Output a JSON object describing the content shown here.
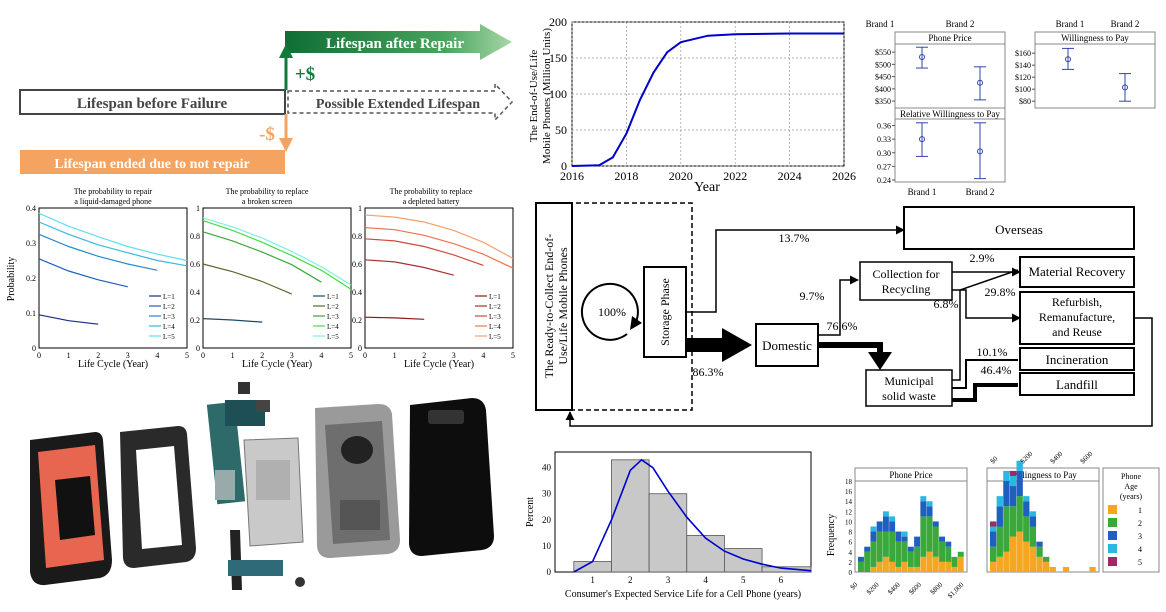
{
  "lifespan": {
    "before_failure": "Lifespan before Failure",
    "after_repair": "Lifespan after Repair",
    "extended": "Possible Extended Lifespan",
    "ended": "Lifespan ended due to not repair",
    "plus": "+$",
    "minus": "-$",
    "colors": {
      "green": "#0f7a3a",
      "orange": "#f4a460",
      "gray": "#555555"
    }
  },
  "eol_chart": {
    "ylabel_line1": "The End-of-Use/Life",
    "ylabel_line2": "Mobile Phones (Million Units)",
    "xlabel": "Year",
    "xticks": [
      "2016",
      "2018",
      "2020",
      "2022",
      "2024",
      "2026"
    ],
    "yticks": [
      "0",
      "50",
      "100",
      "150",
      "200"
    ]
  },
  "price_panels": {
    "brand1_label": "Brand 1",
    "brand2_label": "Brand 2",
    "phone_price_title": "Phone Price",
    "phone_price_ticks": [
      "$550",
      "$500",
      "$450",
      "$400",
      "$350"
    ],
    "rel_wtp_title": "Relative Willingness to Pay",
    "rel_wtp_ticks": [
      "0.36",
      "0.33",
      "0.30",
      "0.27",
      "0.24"
    ],
    "wtp_title": "Willingness to Pay",
    "wtp_ticks": [
      "$160",
      "$140",
      "$120",
      "$100",
      "$80"
    ]
  },
  "prob_charts": {
    "ylabel": "Probability",
    "xlabel": "Life Cycle (Year)",
    "xticks": [
      "0",
      "1",
      "2",
      "3",
      "4",
      "5"
    ],
    "legend": [
      "L=1",
      "L=2",
      "L=3",
      "L=4",
      "L=5"
    ],
    "c1": {
      "title1": "The probability to repair",
      "title2": "a liquid-damaged phone",
      "yticks": [
        "0.4",
        "0.3",
        "0.2",
        "0.1",
        "0"
      ]
    },
    "c2": {
      "title1": "The probability to replace",
      "title2": "a broken screen",
      "yticks": [
        "1",
        "0.8",
        "0.6",
        "0.4",
        "0.2",
        "0"
      ]
    },
    "c3": {
      "title1": "The probability to replace",
      "title2": "a depleted battery",
      "yticks": [
        "1",
        "0.8",
        "0.6",
        "0.4",
        "0.2",
        "0"
      ]
    }
  },
  "flow": {
    "ready_line1": "The Ready-to-Collect End-of-",
    "ready_line2": "Use/Life Mobile Phones",
    "storage": "Storage Phase",
    "pct_100": "100%",
    "domestic": "Domestic",
    "overseas": "Overseas",
    "collection_line1": "Collection for",
    "collection_line2": "Recycling",
    "msw_line1": "Municipal",
    "msw_line2": "solid waste",
    "material_recovery": "Material Recovery",
    "refurb_line1": "Refurbish,",
    "refurb_line2": "Remanufacture,",
    "refurb_line3": "and Reuse",
    "incineration": "Incineration",
    "landfill": "Landfill",
    "p_overseas": "13.7%",
    "p_domestic": "86.3%",
    "p_collection": "9.7%",
    "p_msw": "76.6%",
    "p_mat": "2.9%",
    "p_refurb_small": "6.8%",
    "p_refurb": "29.8%",
    "p_incin": "10.1%",
    "p_landfill": "46.4%"
  },
  "hist": {
    "ylabel": "Percent",
    "xlabel": "Consumer's Expected Service Life for a Cell Phone (years)",
    "yticks": [
      "40",
      "30",
      "20",
      "10",
      "0"
    ],
    "xticks": [
      "1",
      "2",
      "3",
      "4",
      "5",
      "6"
    ]
  },
  "freq": {
    "ylabel": "Frequency",
    "phone_price_title": "Phone Price",
    "wtp_title": "Willingness to Pay",
    "yticks": [
      "18",
      "16",
      "14",
      "12",
      "10",
      "8",
      "6",
      "4",
      "2",
      "0"
    ],
    "price_xticks": [
      "$0",
      "$200",
      "$400",
      "$600",
      "$800",
      "$1,000"
    ],
    "wtp_xticks": [
      "$0",
      "$200",
      "$400",
      "$600"
    ],
    "legend_title1": "Phone",
    "legend_title2": "Age",
    "legend_title3": "(years)",
    "legend_items": [
      "1",
      "2",
      "3",
      "4",
      "5"
    ],
    "colors": [
      "#f5a623",
      "#3aa83a",
      "#1f5fbf",
      "#2ab7e0",
      "#9c2a64"
    ]
  },
  "chart_data": [
    {
      "type": "line",
      "x": [
        2016,
        2017,
        2017.5,
        2018,
        2018.5,
        2019,
        2019.5,
        2020,
        2021,
        2022,
        2024,
        2026
      ],
      "y": [
        0,
        1,
        12,
        45,
        92,
        130,
        158,
        172,
        181,
        183,
        184,
        184
      ],
      "xlabel": "Year",
      "ylabel": "The End-of-Use/Life Mobile Phones (Million Units)",
      "xlim": [
        2016,
        2026
      ],
      "ylim": [
        0,
        200
      ]
    },
    {
      "type": "scatter",
      "title": "Phone Price",
      "categories": [
        "Brand 1",
        "Brand 2"
      ],
      "values": [
        530,
        425
      ],
      "error_low": [
        485,
        355
      ],
      "error_high": [
        570,
        490
      ],
      "ylim": [
        330,
        575
      ]
    },
    {
      "type": "scatter",
      "title": "Relative Willingness to Pay",
      "categories": [
        "Brand 1",
        "Brand 2"
      ],
      "values": [
        0.33,
        0.303
      ],
      "error_low": [
        0.292,
        0.243
      ],
      "error_high": [
        0.366,
        0.366
      ],
      "ylim": [
        0.24,
        0.37
      ]
    },
    {
      "type": "scatter",
      "title": "Willingness to Pay",
      "categories": [
        "Brand 1",
        "Brand 2"
      ],
      "values": [
        150,
        103
      ],
      "error_low": [
        133,
        80
      ],
      "error_high": [
        168,
        126
      ],
      "ylim": [
        72,
        172
      ]
    },
    {
      "type": "line",
      "title": "The probability to repair a liquid-damaged phone",
      "xlabel": "Life Cycle (Year)",
      "ylabel": "Probability",
      "xlim": [
        0,
        5
      ],
      "ylim": [
        0,
        0.4
      ],
      "series": [
        {
          "name": "L=1",
          "x": [
            0,
            1,
            2
          ],
          "y": [
            0.095,
            0.078,
            0.068
          ]
        },
        {
          "name": "L=2",
          "x": [
            0,
            1,
            2,
            3
          ],
          "y": [
            0.255,
            0.22,
            0.195,
            0.175
          ]
        },
        {
          "name": "L=3",
          "x": [
            0,
            1,
            2,
            3,
            4
          ],
          "y": [
            0.325,
            0.29,
            0.262,
            0.24,
            0.222
          ]
        },
        {
          "name": "L=4",
          "x": [
            0,
            1,
            2,
            3,
            4,
            5
          ],
          "y": [
            0.36,
            0.325,
            0.295,
            0.272,
            0.25,
            0.235
          ]
        },
        {
          "name": "L=5",
          "x": [
            0,
            1,
            2,
            3,
            4,
            5
          ],
          "y": [
            0.385,
            0.348,
            0.318,
            0.29,
            0.268,
            0.25
          ]
        }
      ]
    },
    {
      "type": "line",
      "title": "The probability to replace a broken screen",
      "xlabel": "Life Cycle (Year)",
      "ylabel": "Probability",
      "xlim": [
        0,
        5
      ],
      "ylim": [
        0,
        1
      ],
      "series": [
        {
          "name": "L=1",
          "x": [
            0,
            1,
            2
          ],
          "y": [
            0.21,
            0.2,
            0.185
          ]
        },
        {
          "name": "L=2",
          "x": [
            0,
            1,
            2,
            3
          ],
          "y": [
            0.6,
            0.545,
            0.475,
            0.385
          ]
        },
        {
          "name": "L=3",
          "x": [
            0,
            1,
            2,
            3,
            4
          ],
          "y": [
            0.83,
            0.765,
            0.685,
            0.595,
            0.47
          ]
        },
        {
          "name": "L=4",
          "x": [
            0,
            1,
            2,
            3,
            4,
            5
          ],
          "y": [
            0.91,
            0.84,
            0.755,
            0.66,
            0.555,
            0.42
          ]
        },
        {
          "name": "L=5",
          "x": [
            0,
            1,
            2,
            3,
            4,
            5
          ],
          "y": [
            0.93,
            0.865,
            0.785,
            0.69,
            0.58,
            0.45
          ]
        }
      ]
    },
    {
      "type": "line",
      "title": "The probability to replace a depleted battery",
      "xlabel": "Life Cycle (Year)",
      "ylabel": "Probability",
      "xlim": [
        0,
        5
      ],
      "ylim": [
        0,
        1
      ],
      "series": [
        {
          "name": "L=1",
          "x": [
            0,
            1,
            2
          ],
          "y": [
            0.22,
            0.215,
            0.205
          ]
        },
        {
          "name": "L=2",
          "x": [
            0,
            1,
            2,
            3
          ],
          "y": [
            0.63,
            0.615,
            0.575,
            0.52
          ]
        },
        {
          "name": "L=3",
          "x": [
            0,
            1,
            2,
            3,
            4
          ],
          "y": [
            0.78,
            0.765,
            0.725,
            0.665,
            0.59
          ]
        },
        {
          "name": "L=4",
          "x": [
            0,
            1,
            2,
            3,
            4,
            5
          ],
          "y": [
            0.86,
            0.845,
            0.805,
            0.745,
            0.67,
            0.57
          ]
        },
        {
          "name": "L=5",
          "x": [
            0,
            1,
            2,
            3,
            4,
            5
          ],
          "y": [
            0.95,
            0.935,
            0.9,
            0.84,
            0.755,
            0.64
          ]
        }
      ]
    },
    {
      "type": "bar",
      "xlabel": "Consumer's Expected Service Life for a Cell Phone (years)",
      "ylabel": "Percent",
      "bins": [
        [
          0.5,
          1.5
        ],
        [
          1.5,
          2.5
        ],
        [
          2.5,
          3.5
        ],
        [
          3.5,
          4.5
        ],
        [
          4.5,
          5.5
        ],
        [
          5.5,
          6.8
        ]
      ],
      "values": [
        4,
        43,
        30,
        14,
        9,
        2
      ],
      "ylim": [
        0,
        46
      ],
      "xlim": [
        0,
        6.8
      ],
      "curve": {
        "x": [
          0.5,
          1,
          1.5,
          2,
          2.3,
          2.6,
          3,
          3.5,
          4,
          4.5,
          5,
          5.5,
          6,
          6.8
        ],
        "y": [
          0,
          4,
          20,
          39,
          43,
          40,
          31,
          21,
          13,
          8,
          5,
          3,
          1.5,
          0.5
        ]
      }
    }
  ]
}
